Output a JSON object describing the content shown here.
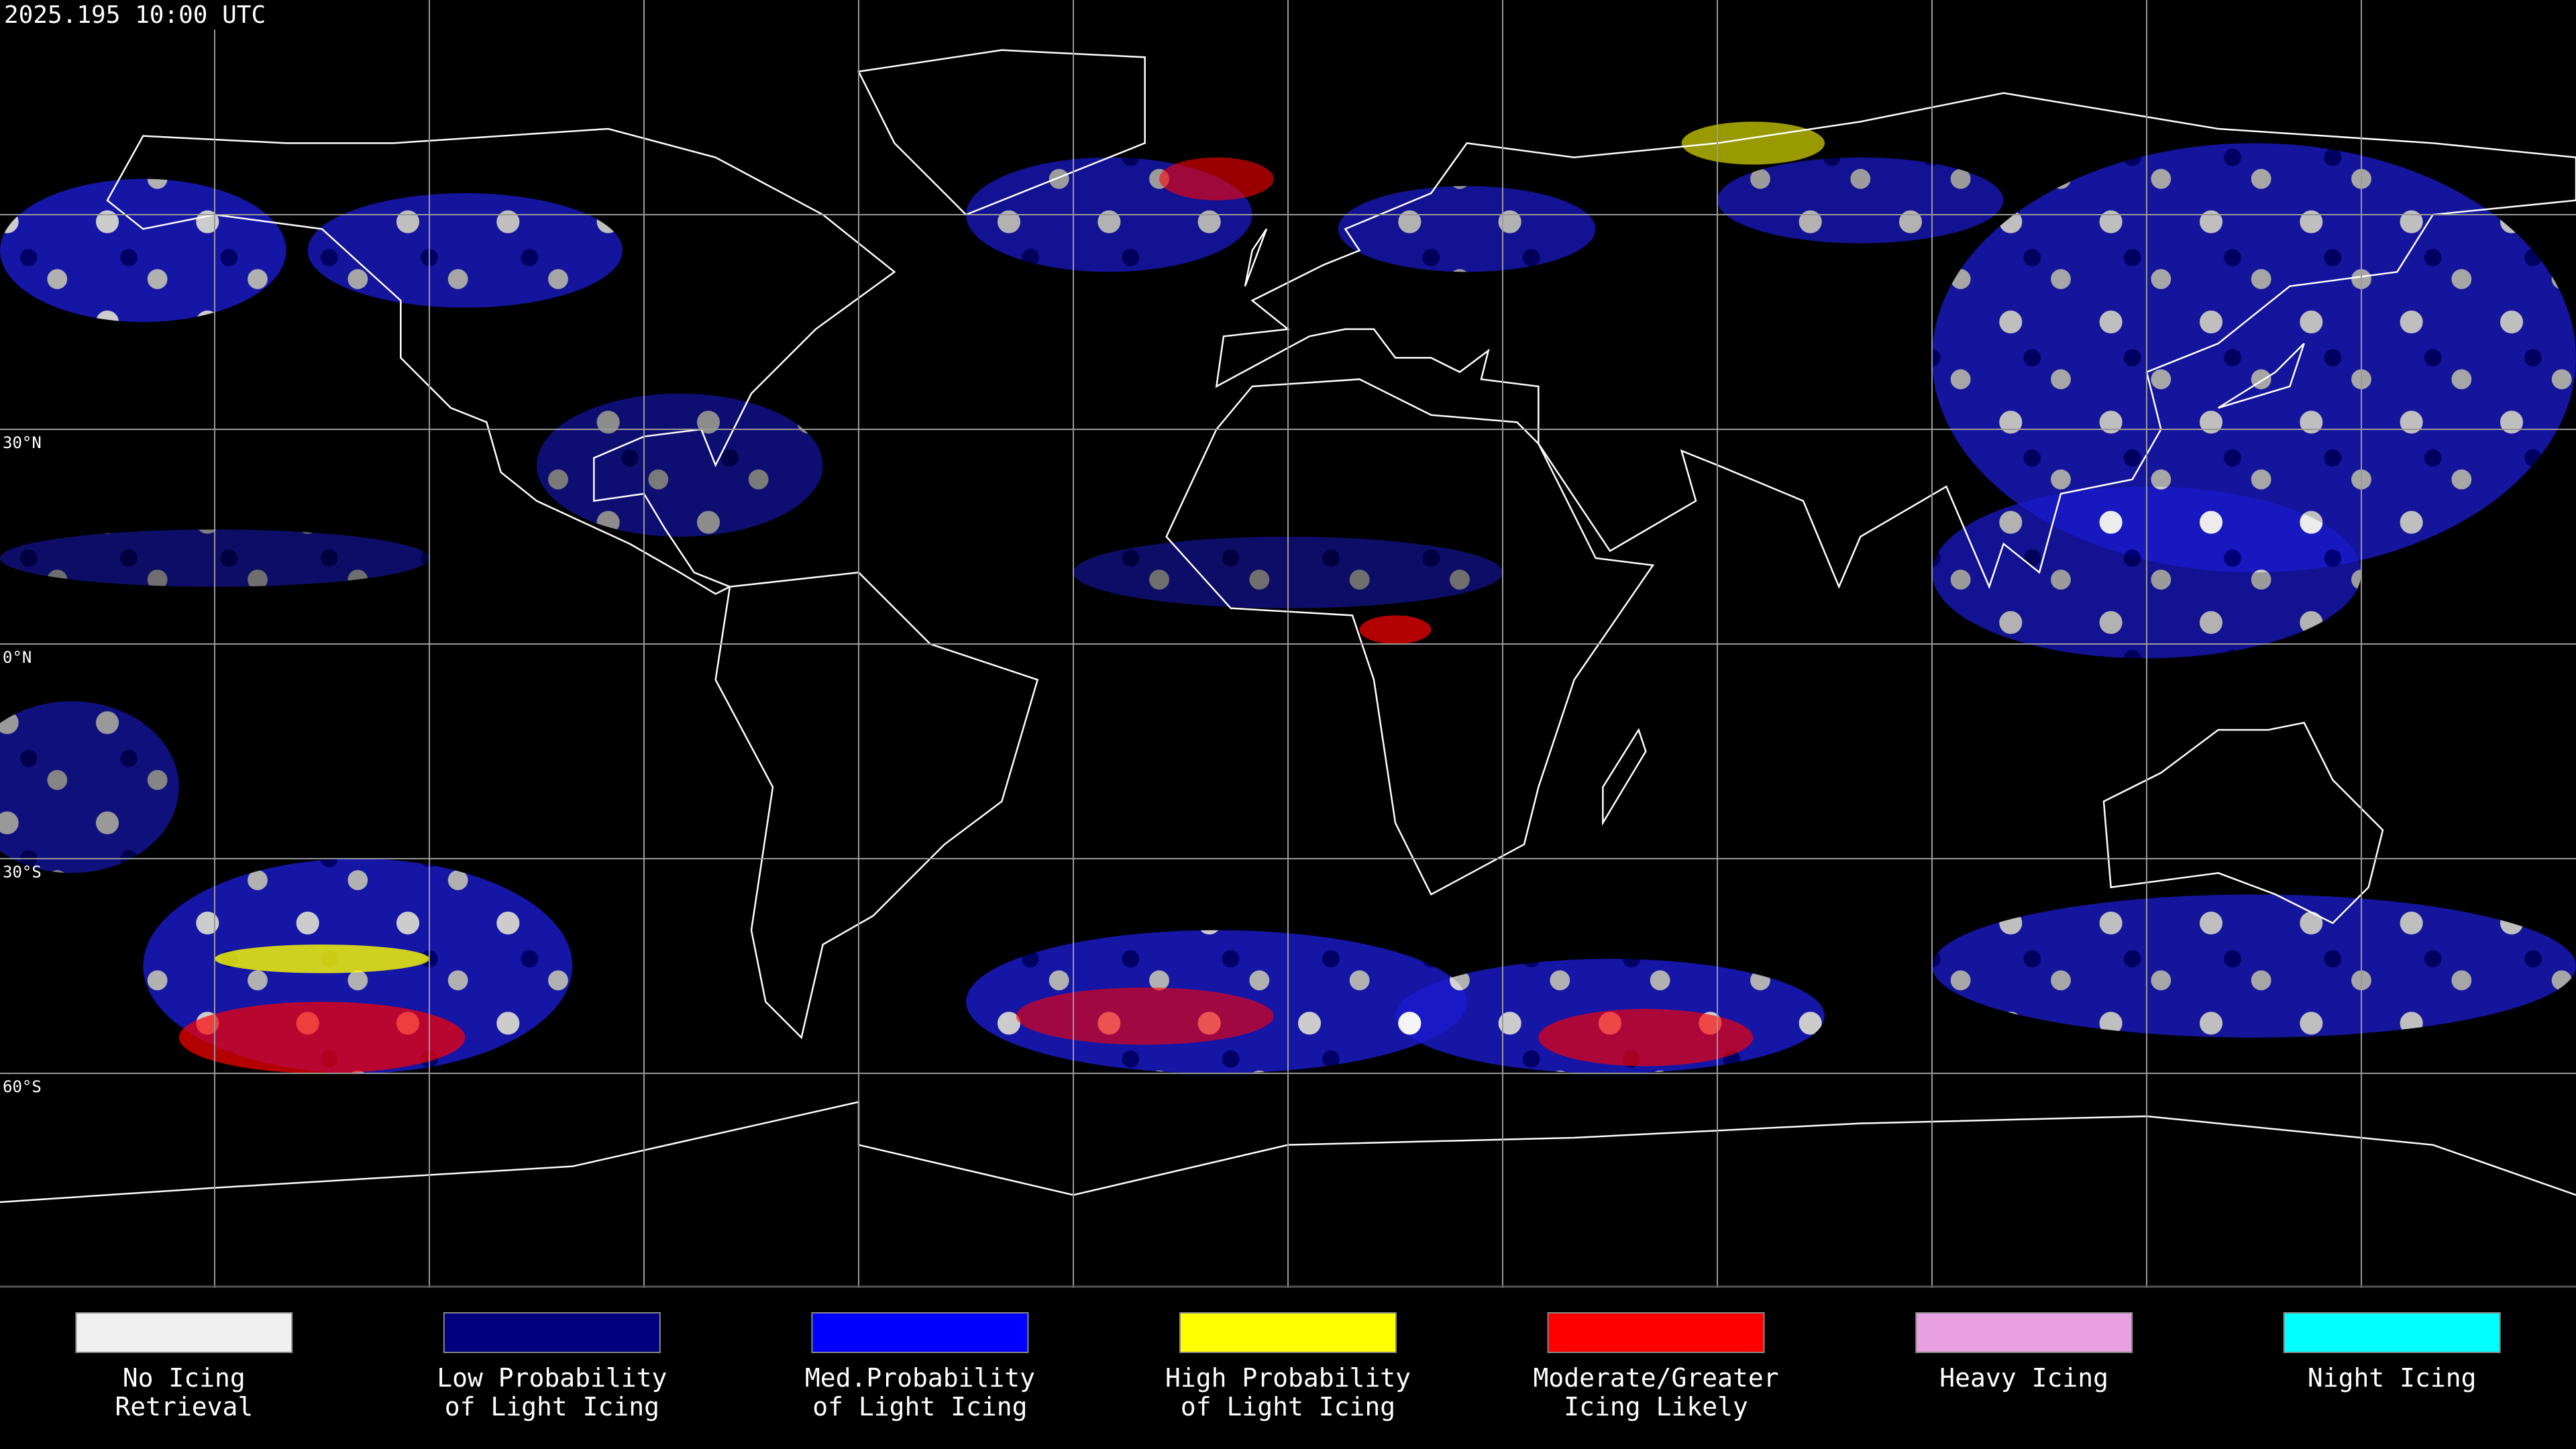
{
  "header": {
    "timestamp": "2025.195 10:00 UTC"
  },
  "map": {
    "latitude_labels": [
      "30°N",
      "0°N",
      "30°S",
      "60°S"
    ]
  },
  "legend": [
    {
      "color": "#f0f0f0",
      "lines": [
        "No Icing",
        "Retrieval"
      ]
    },
    {
      "color": "#00007f",
      "lines": [
        "Low Probability",
        "of Light Icing"
      ]
    },
    {
      "color": "#0000ff",
      "lines": [
        "Med.Probability",
        "of Light Icing"
      ]
    },
    {
      "color": "#ffff00",
      "lines": [
        "High Probability",
        "of Light Icing"
      ]
    },
    {
      "color": "#ff0000",
      "lines": [
        "Moderate/Greater",
        "Icing Likely"
      ]
    },
    {
      "color": "#e8a0e0",
      "lines": [
        "Heavy Icing"
      ]
    },
    {
      "color": "#00ffff",
      "lines": [
        "Night Icing"
      ]
    }
  ]
}
